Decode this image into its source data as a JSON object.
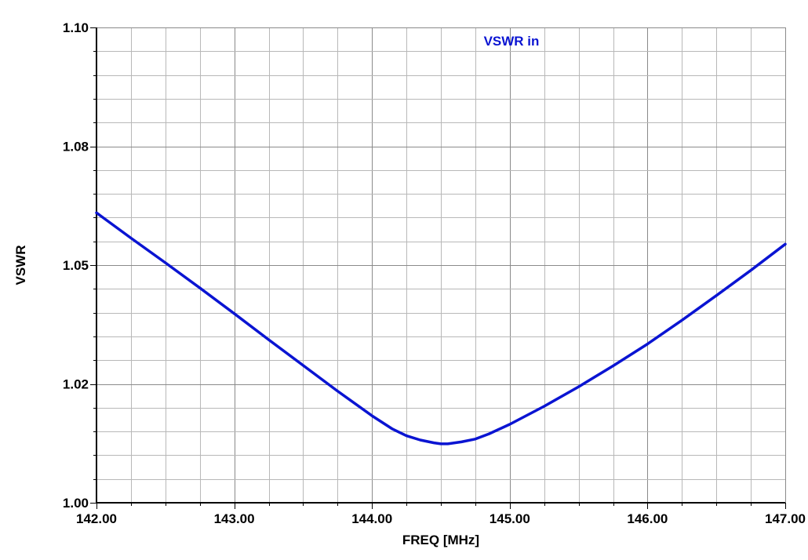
{
  "chart_data": {
    "type": "line",
    "title": "",
    "xlabel": "FREQ [MHz]",
    "ylabel": "VSWR",
    "xlim": [
      142.0,
      147.0
    ],
    "ylim": [
      1.0,
      1.1
    ],
    "x_ticks": [
      142.0,
      143.0,
      144.0,
      145.0,
      146.0,
      147.0
    ],
    "x_tick_labels": [
      "142.00",
      "143.00",
      "144.00",
      "145.00",
      "146.00",
      "147.00"
    ],
    "y_ticks": [
      1.0,
      1.025,
      1.05,
      1.075,
      1.1
    ],
    "y_tick_labels": [
      "1.00",
      "1.02",
      "1.05",
      "1.08",
      "1.10"
    ],
    "x_grid_step": 0.25,
    "y_grid_step": 0.005,
    "grid": true,
    "legend_position": "top-center",
    "series": [
      {
        "name": "VSWR in",
        "color": "#0a14d2",
        "x": [
          142.0,
          142.25,
          142.5,
          142.75,
          143.0,
          143.25,
          143.5,
          143.75,
          144.0,
          144.15,
          144.25,
          144.35,
          144.45,
          144.5,
          144.55,
          144.65,
          144.75,
          144.85,
          145.0,
          145.25,
          145.5,
          145.75,
          146.0,
          146.25,
          146.5,
          146.75,
          147.0
        ],
        "y": [
          1.061,
          1.0557,
          1.0505,
          1.0452,
          1.0398,
          1.0343,
          1.0289,
          1.0235,
          1.0183,
          1.0155,
          1.0141,
          1.0132,
          1.0126,
          1.0124,
          1.0124,
          1.0128,
          1.0134,
          1.0145,
          1.0165,
          1.0203,
          1.0244,
          1.0288,
          1.0334,
          1.0384,
          1.0436,
          1.0489,
          1.0544
        ]
      }
    ]
  }
}
